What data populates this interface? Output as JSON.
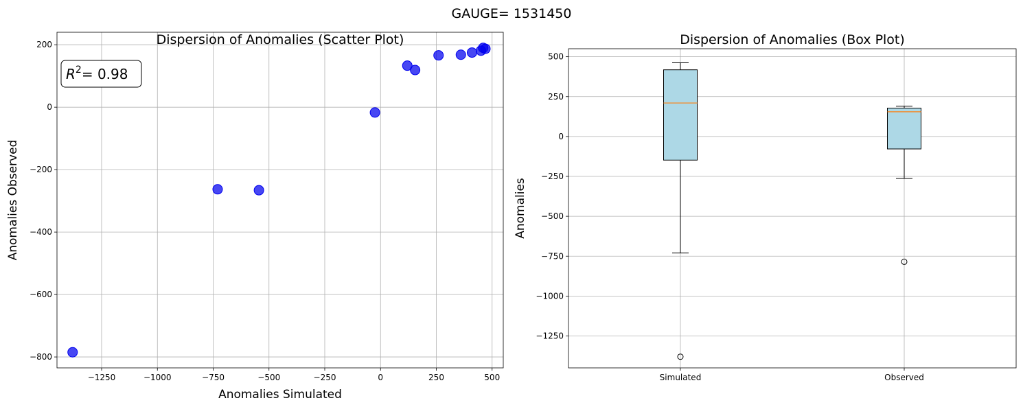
{
  "suptitle": "GAUGE= 1531450",
  "chart_data": [
    {
      "type": "scatter",
      "title": "Dispersion of Anomalies (Scatter Plot)",
      "xlabel": "Anomalies Simulated",
      "ylabel": "Anomalies Observed",
      "xlim": [
        -1450,
        550
      ],
      "ylim": [
        -835,
        240
      ],
      "xticks": [
        -1250,
        -1000,
        -750,
        -500,
        -250,
        0,
        250,
        500
      ],
      "yticks": [
        -800,
        -600,
        -400,
        -200,
        0,
        200
      ],
      "grid": true,
      "annotation": {
        "prefix": "R",
        "exponent": "2",
        "value": "= 0.98"
      },
      "color": "#0000ee",
      "points": [
        {
          "x": -1380,
          "y": -785
        },
        {
          "x": -730,
          "y": -263
        },
        {
          "x": -545,
          "y": -266
        },
        {
          "x": -25,
          "y": -17
        },
        {
          "x": 120,
          "y": 133
        },
        {
          "x": 155,
          "y": 119
        },
        {
          "x": 260,
          "y": 166
        },
        {
          "x": 360,
          "y": 168
        },
        {
          "x": 410,
          "y": 175
        },
        {
          "x": 450,
          "y": 181
        },
        {
          "x": 460,
          "y": 190
        },
        {
          "x": 470,
          "y": 187
        }
      ]
    },
    {
      "type": "box",
      "title": "Dispersion of Anomalies (Box Plot)",
      "xlabel": "",
      "ylabel": "Anomalies",
      "ylim": [
        -1450,
        550
      ],
      "yticks": [
        500,
        250,
        0,
        -250,
        -500,
        -750,
        -1000,
        -1250
      ],
      "grid": true,
      "box_color": "#add8e6",
      "median_color": "#ff7f0e",
      "categories": [
        "Simulated",
        "Observed"
      ],
      "boxes": [
        {
          "name": "Simulated",
          "whisker_low": -730,
          "q1": -148,
          "median": 210,
          "q3": 418,
          "whisker_high": 462,
          "outliers": [
            -1380
          ]
        },
        {
          "name": "Observed",
          "whisker_low": -263,
          "q1": -78,
          "median": 155,
          "q3": 178,
          "whisker_high": 190,
          "outliers": [
            -785
          ]
        }
      ]
    }
  ]
}
